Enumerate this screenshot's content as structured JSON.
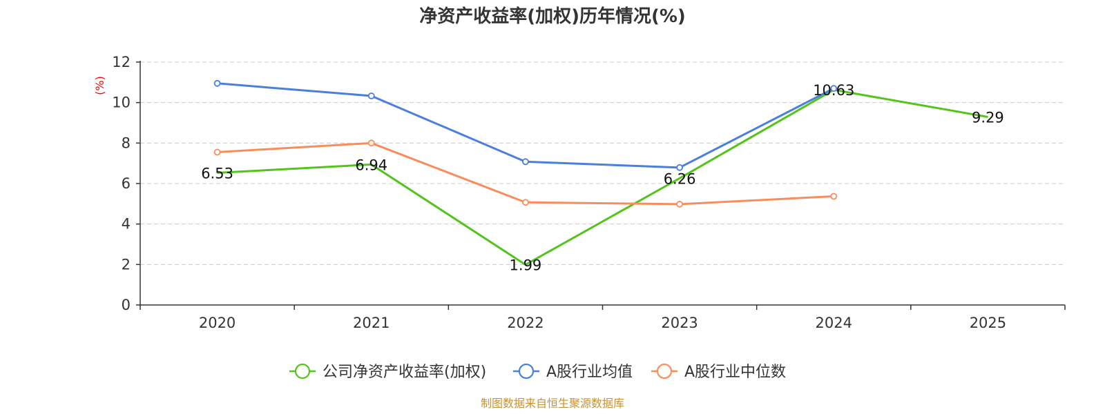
{
  "chart_data": {
    "type": "line",
    "title": "净资产收益率(加权)历年情况(%)",
    "ylabel": "(%)",
    "xlabel": "",
    "ylim": [
      0,
      12
    ],
    "yticks": [
      0,
      2,
      4,
      6,
      8,
      10,
      12
    ],
    "grid": true,
    "categories": [
      "2020",
      "2021",
      "2022",
      "2023",
      "2024",
      "2025"
    ],
    "series": [
      {
        "name": "公司净资产收益率(加权)",
        "color": "#52c41a",
        "values": [
          6.53,
          6.94,
          1.99,
          6.26,
          10.63,
          9.29
        ],
        "labels": [
          "6.53",
          "6.94",
          "1.99",
          "6.26",
          "10.63",
          "9.29"
        ]
      },
      {
        "name": "A股行业均值",
        "color": "#4a7fdb",
        "values": [
          10.95,
          10.33,
          7.08,
          6.79,
          10.7,
          null
        ]
      },
      {
        "name": "A股行业中位数",
        "color": "#fa8c5b",
        "values": [
          7.55,
          8.0,
          5.07,
          4.98,
          5.37,
          null
        ]
      }
    ],
    "legend_position": "bottom",
    "source": "制图数据来自恒生聚源数据库"
  }
}
